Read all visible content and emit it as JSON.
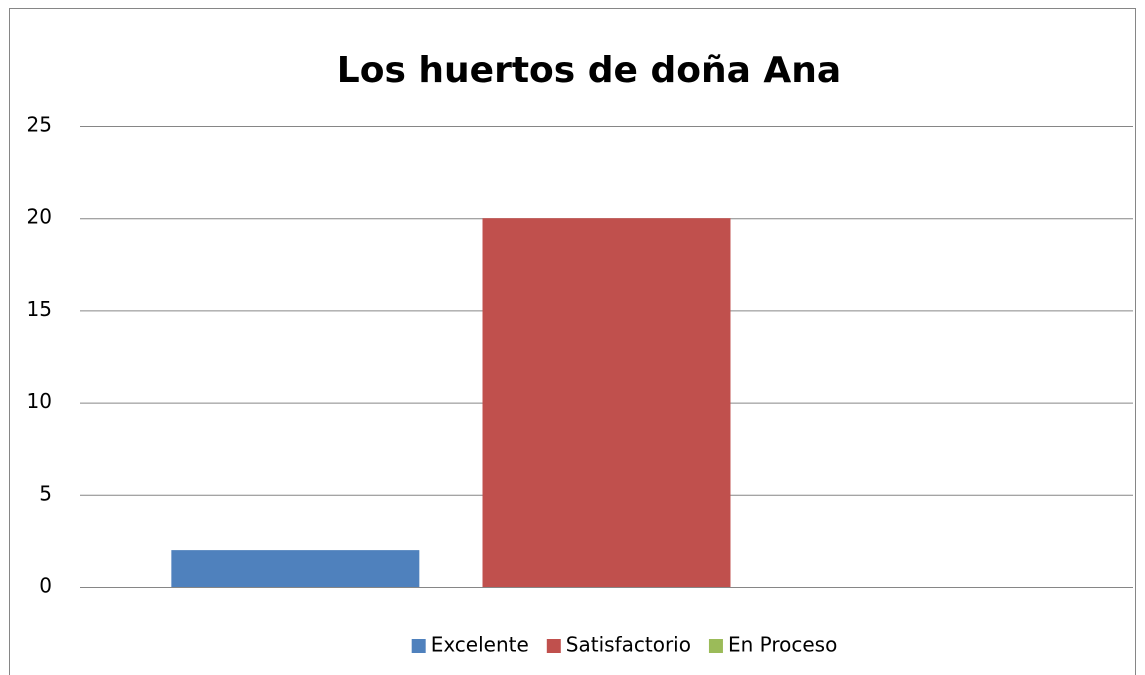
{
  "chart_data": {
    "type": "bar",
    "title": "Los huertos de doña Ana",
    "categories": [
      null
    ],
    "series": [
      {
        "name": "Excelente",
        "color": "#4f81bd",
        "values": [
          2
        ]
      },
      {
        "name": "Satisfactorio",
        "color": "#c0504d",
        "values": [
          20
        ]
      },
      {
        "name": "En Proceso",
        "color": "#9bbb59",
        "values": [
          0
        ]
      }
    ],
    "ylim": [
      0,
      25
    ],
    "yticks": [
      0,
      5,
      10,
      15,
      20,
      25
    ],
    "grid": true,
    "legend": "bottom"
  }
}
